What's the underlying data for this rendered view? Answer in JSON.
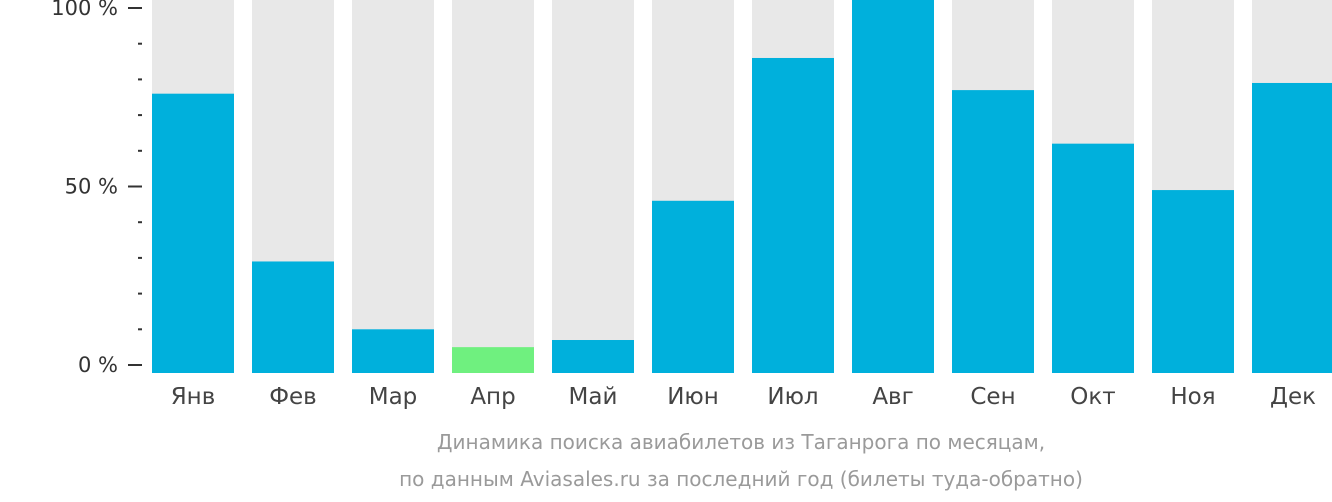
{
  "chart_data": {
    "type": "bar",
    "categories": [
      "Янв",
      "Фев",
      "Мар",
      "Апр",
      "Май",
      "Июн",
      "Июл",
      "Авг",
      "Сен",
      "Окт",
      "Ноя",
      "Дек"
    ],
    "values": [
      76,
      29,
      10,
      5,
      7,
      46,
      86,
      100,
      77,
      62,
      49,
      79
    ],
    "max_value": 100,
    "highlight_index": 3,
    "ylim": [
      0,
      100
    ],
    "yticks": [
      {
        "value": 0,
        "label": "0 %"
      },
      {
        "value": 50,
        "label": "50 %"
      },
      {
        "value": 100,
        "label": "100 %"
      }
    ],
    "minor_tick_step": 10,
    "colors": {
      "bar": "#00b0dc",
      "highlight": "#6ff07f",
      "track": "#e8e8e8",
      "axis": "#333333"
    },
    "grid": false,
    "legend": "none"
  },
  "caption": {
    "line1": "Динамика поиска авиабилетов из Таганрога по месяцам,",
    "line2": "по данным Aviasales.ru за последний год (билеты туда-обратно)"
  }
}
